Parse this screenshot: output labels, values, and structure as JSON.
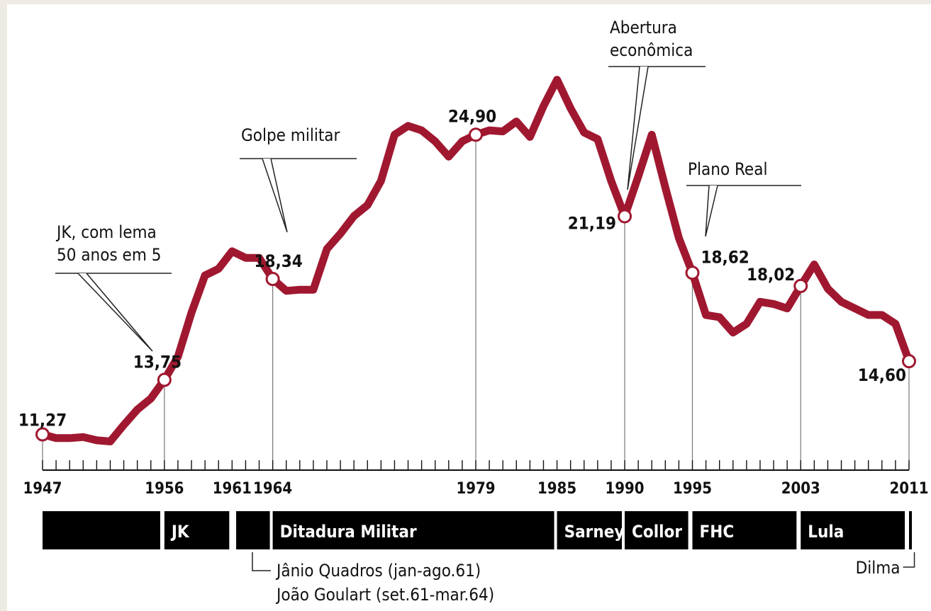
{
  "chart_data": {
    "type": "line",
    "title": "",
    "xlabel": "",
    "ylabel": "",
    "xlim": [
      1947,
      2011
    ],
    "ylim": [
      10,
      28
    ],
    "colors": {
      "line": "#a01830",
      "marker_fill": "#ffffff",
      "period_bar": "#000000"
    },
    "series": [
      {
        "x": [
          1947,
          1948,
          1949,
          1950,
          1951,
          1952,
          1953,
          1954,
          1955,
          1956,
          1957,
          1958,
          1959,
          1960,
          1961,
          1962,
          1963,
          1964,
          1965,
          1966,
          1967,
          1968,
          1969,
          1970,
          1971,
          1972,
          1973,
          1974,
          1975,
          1976,
          1977,
          1978,
          1979,
          1980,
          1981,
          1982,
          1983,
          1984,
          1985,
          1986,
          1987,
          1988,
          1989,
          1990,
          1991,
          1992,
          1993,
          1994,
          1995,
          1996,
          1997,
          1998,
          1999,
          2000,
          2001,
          2002,
          2003,
          2004,
          2005,
          2006,
          2007,
          2008,
          2009,
          2010,
          2011
        ],
        "y": [
          11.27,
          11.1,
          11.1,
          11.15,
          11.0,
          10.95,
          11.7,
          12.4,
          12.9,
          13.75,
          14.8,
          16.8,
          18.5,
          18.8,
          19.6,
          19.3,
          19.3,
          18.34,
          17.8,
          17.85,
          17.85,
          19.7,
          20.4,
          21.2,
          21.7,
          22.8,
          24.9,
          25.3,
          25.1,
          24.6,
          23.9,
          24.6,
          24.9,
          25.1,
          25.05,
          25.5,
          24.8,
          26.2,
          27.4,
          26.1,
          25.0,
          24.7,
          22.8,
          21.19,
          23.0,
          24.9,
          22.5,
          20.2,
          18.62,
          16.7,
          16.6,
          15.9,
          16.3,
          17.3,
          17.2,
          17.0,
          18.02,
          19.0,
          17.9,
          17.3,
          17.0,
          16.7,
          16.7,
          16.3,
          14.6
        ]
      }
    ],
    "labeled_points": [
      {
        "x": 1947,
        "y": 11.27,
        "label": "11,27"
      },
      {
        "x": 1956,
        "y": 13.75,
        "label": "13,75"
      },
      {
        "x": 1964,
        "y": 18.34,
        "label": "18,34"
      },
      {
        "x": 1979,
        "y": 24.9,
        "label": "24,90"
      },
      {
        "x": 1990,
        "y": 21.19,
        "label": "21,19"
      },
      {
        "x": 1995,
        "y": 18.62,
        "label": "18,62"
      },
      {
        "x": 2003,
        "y": 18.02,
        "label": "18,02"
      },
      {
        "x": 2011,
        "y": 14.6,
        "label": "14,60"
      }
    ],
    "x_tick_labels": [
      "1947",
      "1956",
      "1961",
      "1964",
      "1979",
      "1985",
      "1990",
      "1995",
      "2003",
      "2011"
    ],
    "annotations": [
      {
        "lines": [
          "JK, com lema",
          "50 anos em 5"
        ],
        "year": 1956
      },
      {
        "lines": [
          "Golpe militar"
        ],
        "year": 1964
      },
      {
        "lines": [
          "Abertura",
          "econômica"
        ],
        "year": 1990
      },
      {
        "lines": [
          "Plano Real"
        ],
        "year": 1995
      }
    ],
    "periods": [
      {
        "label": "",
        "start": 1947,
        "end": 1955.9
      },
      {
        "label": "JK",
        "start": 1956,
        "end": 1961
      },
      {
        "label": "",
        "start": 1961.3,
        "end": 1964
      },
      {
        "label": "Ditadura Militar",
        "start": 1964,
        "end": 1985
      },
      {
        "label": "Sarney",
        "start": 1985,
        "end": 1990
      },
      {
        "label": "Collor",
        "start": 1990,
        "end": 1994.9
      },
      {
        "label": "FHC",
        "start": 1995,
        "end": 2002.9
      },
      {
        "label": "Lula",
        "start": 2003,
        "end": 2010.9
      },
      {
        "label": "",
        "start": 2011,
        "end": 2012
      }
    ],
    "footnotes": [
      {
        "lines": [
          "Jânio Quadros (jan-ago.61)",
          "João Goulart (set.61-mar.64)"
        ],
        "period_year": 1962.5
      },
      {
        "lines": [
          "Dilma"
        ],
        "period_year": 2011.5
      }
    ]
  }
}
